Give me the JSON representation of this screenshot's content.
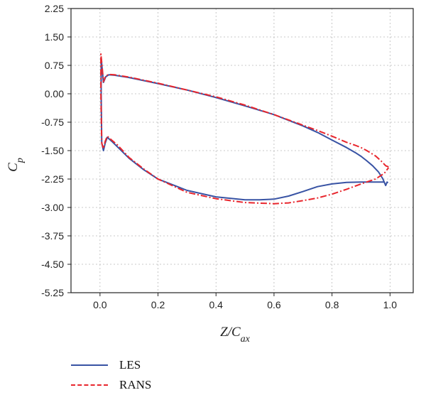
{
  "chart_data": {
    "type": "line",
    "xlabel": "Z/C",
    "xlabel_sub": "ax",
    "ylabel": "C",
    "ylabel_sub": "p",
    "xlim": [
      -0.1,
      1.08
    ],
    "ylim": [
      -5.25,
      2.25
    ],
    "x_ticks": [
      0.0,
      0.2,
      0.4,
      0.6,
      0.8,
      1.0
    ],
    "x_tick_labels": [
      "0.0",
      "0.2",
      "0.4",
      "0.6",
      "0.8",
      "1.0"
    ],
    "y_ticks": [
      2.25,
      1.5,
      0.75,
      0.0,
      -0.75,
      -1.5,
      -2.25,
      -3.0,
      -3.75,
      -4.5,
      -5.25
    ],
    "y_tick_labels": [
      "2.25",
      "1.50",
      "0.75",
      "0.00",
      "-0.75",
      "-1.50",
      "-2.25",
      "-3.00",
      "-3.75",
      "-4.50",
      "-5.25"
    ],
    "grid": true,
    "legend_position": "bottom-left, below plot",
    "series": [
      {
        "name": "LES",
        "color": "#3853a4",
        "dash": "solid",
        "x": [
          0.985,
          0.975,
          0.96,
          0.94,
          0.92,
          0.9,
          0.88,
          0.85,
          0.8,
          0.75,
          0.7,
          0.6,
          0.5,
          0.4,
          0.3,
          0.2,
          0.1,
          0.05,
          0.03,
          0.02,
          0.012,
          0.007,
          0.004,
          0.004,
          0.006,
          0.012,
          0.018,
          0.025,
          0.04,
          0.06,
          0.1,
          0.15,
          0.2,
          0.3,
          0.4,
          0.5,
          0.55,
          0.6,
          0.65,
          0.7,
          0.75,
          0.8,
          0.85,
          0.9,
          0.95,
          0.97,
          0.98,
          0.985,
          0.99,
          0.993
        ],
        "y": [
          -2.42,
          -2.24,
          -2.06,
          -1.9,
          -1.77,
          -1.65,
          -1.55,
          -1.42,
          -1.22,
          -1.02,
          -0.85,
          -0.55,
          -0.32,
          -0.1,
          0.1,
          0.27,
          0.43,
          0.49,
          0.5,
          0.45,
          0.3,
          0.7,
          0.95,
          0.0,
          -1.3,
          -1.5,
          -1.3,
          -1.15,
          -1.25,
          -1.4,
          -1.7,
          -2.0,
          -2.25,
          -2.55,
          -2.72,
          -2.8,
          -2.8,
          -2.78,
          -2.7,
          -2.58,
          -2.45,
          -2.38,
          -2.34,
          -2.33,
          -2.33,
          -2.33,
          -2.33,
          -2.42,
          -2.33,
          -2.35
        ]
      },
      {
        "name": "RANS",
        "color": "#e8262d",
        "dash": "dashdot",
        "x": [
          0.995,
          0.985,
          0.97,
          0.95,
          0.92,
          0.9,
          0.88,
          0.85,
          0.8,
          0.75,
          0.7,
          0.6,
          0.5,
          0.4,
          0.3,
          0.2,
          0.1,
          0.05,
          0.03,
          0.02,
          0.012,
          0.007,
          0.003,
          0.003,
          0.006,
          0.012,
          0.018,
          0.025,
          0.04,
          0.06,
          0.1,
          0.15,
          0.2,
          0.3,
          0.4,
          0.5,
          0.6,
          0.65,
          0.7,
          0.75,
          0.8,
          0.85,
          0.9,
          0.95,
          0.98,
          0.995
        ],
        "y": [
          -1.93,
          -1.9,
          -1.78,
          -1.64,
          -1.5,
          -1.42,
          -1.36,
          -1.28,
          -1.12,
          -0.97,
          -0.83,
          -0.55,
          -0.3,
          -0.08,
          0.1,
          0.28,
          0.44,
          0.5,
          0.51,
          0.47,
          0.32,
          0.75,
          1.05,
          0.0,
          -1.3,
          -1.45,
          -1.25,
          -1.12,
          -1.22,
          -1.35,
          -1.68,
          -1.98,
          -2.25,
          -2.6,
          -2.77,
          -2.87,
          -2.9,
          -2.88,
          -2.82,
          -2.75,
          -2.65,
          -2.52,
          -2.38,
          -2.25,
          -2.1,
          -1.95
        ]
      }
    ]
  }
}
